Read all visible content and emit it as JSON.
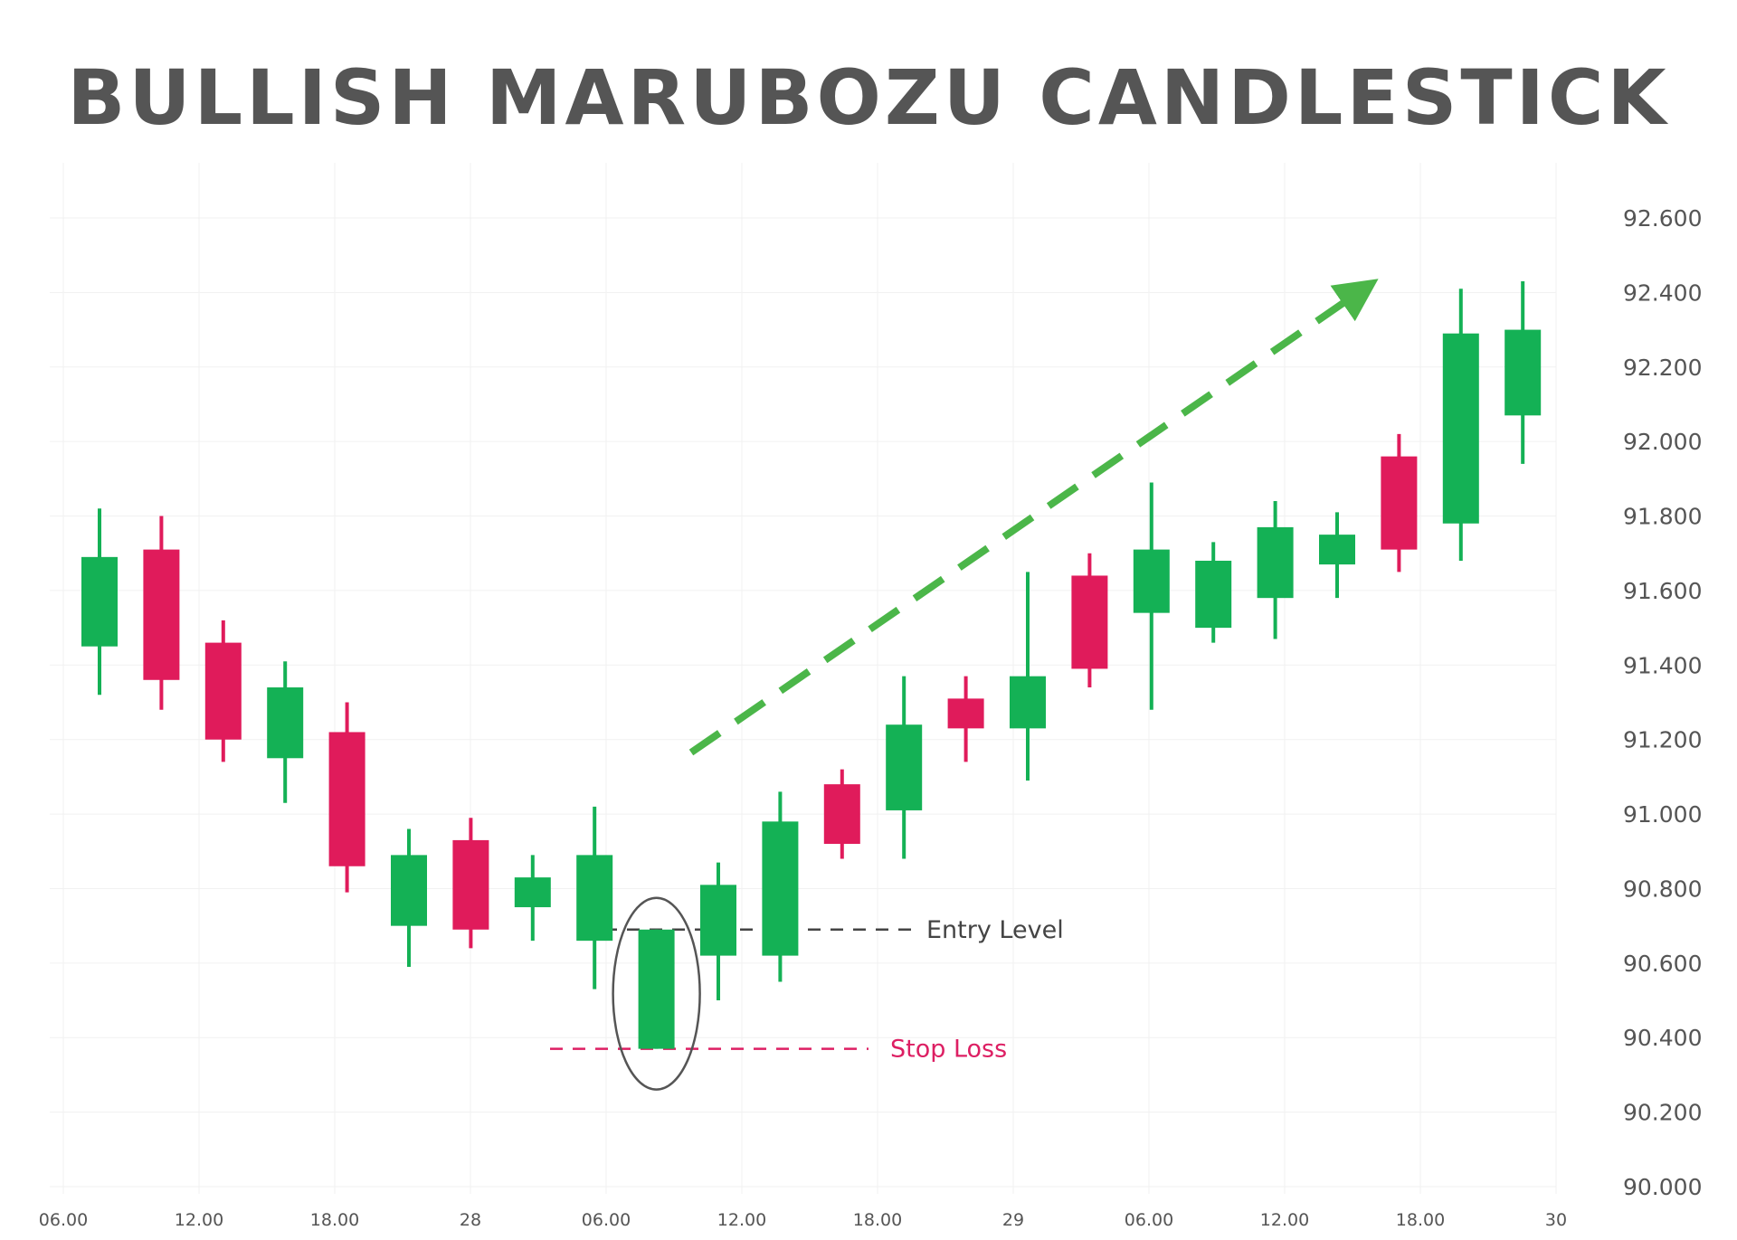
{
  "title": "BULLISH MARUBOZU CANDLESTICK",
  "chart_data": {
    "type": "candlestick",
    "title": "BULLISH MARUBOZU CANDLESTICK",
    "ylim": [
      90.0,
      92.6
    ],
    "y_ticks": [
      "92.600",
      "92.400",
      "92.200",
      "92.000",
      "91.800",
      "91.600",
      "91.400",
      "91.200",
      "91.000",
      "90.800",
      "90.600",
      "90.400",
      "90.200",
      "90.000"
    ],
    "x_ticks": [
      "06.00",
      "12.00",
      "18.00",
      "28",
      "06.00",
      "12.00",
      "18.00",
      "29",
      "06.00",
      "12.00",
      "18.00",
      "30"
    ],
    "grid": true,
    "colors": {
      "bull": "#14b155",
      "bear": "#e01b5b",
      "trend": "#4bb649",
      "axis_text": "#555555",
      "entry_line": "#444444",
      "stop_line": "#dd1f63",
      "highlight_ellipse": "#555555"
    },
    "candles": [
      {
        "open": 91.45,
        "high": 91.82,
        "low": 91.32,
        "close": 91.69
      },
      {
        "open": 91.71,
        "high": 91.8,
        "low": 91.28,
        "close": 91.36
      },
      {
        "open": 91.46,
        "high": 91.52,
        "low": 91.14,
        "close": 91.2
      },
      {
        "open": 91.15,
        "high": 91.41,
        "low": 91.03,
        "close": 91.34
      },
      {
        "open": 91.22,
        "high": 91.3,
        "low": 90.79,
        "close": 90.86
      },
      {
        "open": 90.7,
        "high": 90.96,
        "low": 90.59,
        "close": 90.89
      },
      {
        "open": 90.93,
        "high": 90.99,
        "low": 90.64,
        "close": 90.69
      },
      {
        "open": 90.75,
        "high": 90.89,
        "low": 90.66,
        "close": 90.83
      },
      {
        "open": 90.66,
        "high": 91.02,
        "low": 90.53,
        "close": 90.89
      },
      {
        "open": 90.37,
        "high": 90.69,
        "low": 90.37,
        "close": 90.69,
        "highlight": true
      },
      {
        "open": 90.62,
        "high": 90.87,
        "low": 90.5,
        "close": 90.81
      },
      {
        "open": 90.62,
        "high": 91.06,
        "low": 90.55,
        "close": 90.98
      },
      {
        "open": 91.08,
        "high": 91.12,
        "low": 90.88,
        "close": 90.92
      },
      {
        "open": 91.01,
        "high": 91.37,
        "low": 90.88,
        "close": 91.24
      },
      {
        "open": 91.31,
        "high": 91.37,
        "low": 91.14,
        "close": 91.23
      },
      {
        "open": 91.23,
        "high": 91.65,
        "low": 91.09,
        "close": 91.37
      },
      {
        "open": 91.64,
        "high": 91.7,
        "low": 91.34,
        "close": 91.39
      },
      {
        "open": 91.54,
        "high": 91.89,
        "low": 91.28,
        "close": 91.71
      },
      {
        "open": 91.5,
        "high": 91.73,
        "low": 91.46,
        "close": 91.68
      },
      {
        "open": 91.58,
        "high": 91.84,
        "low": 91.47,
        "close": 91.77
      },
      {
        "open": 91.67,
        "high": 91.81,
        "low": 91.58,
        "close": 91.75
      },
      {
        "open": 91.96,
        "high": 92.02,
        "low": 91.65,
        "close": 91.71
      },
      {
        "open": 91.78,
        "high": 92.41,
        "low": 91.68,
        "close": 92.29
      },
      {
        "open": 92.07,
        "high": 92.43,
        "low": 91.94,
        "close": 92.3
      }
    ],
    "annotations": [
      {
        "label": "Entry Level",
        "value": 90.69
      },
      {
        "label": "Stop Loss",
        "value": 90.37
      }
    ]
  }
}
